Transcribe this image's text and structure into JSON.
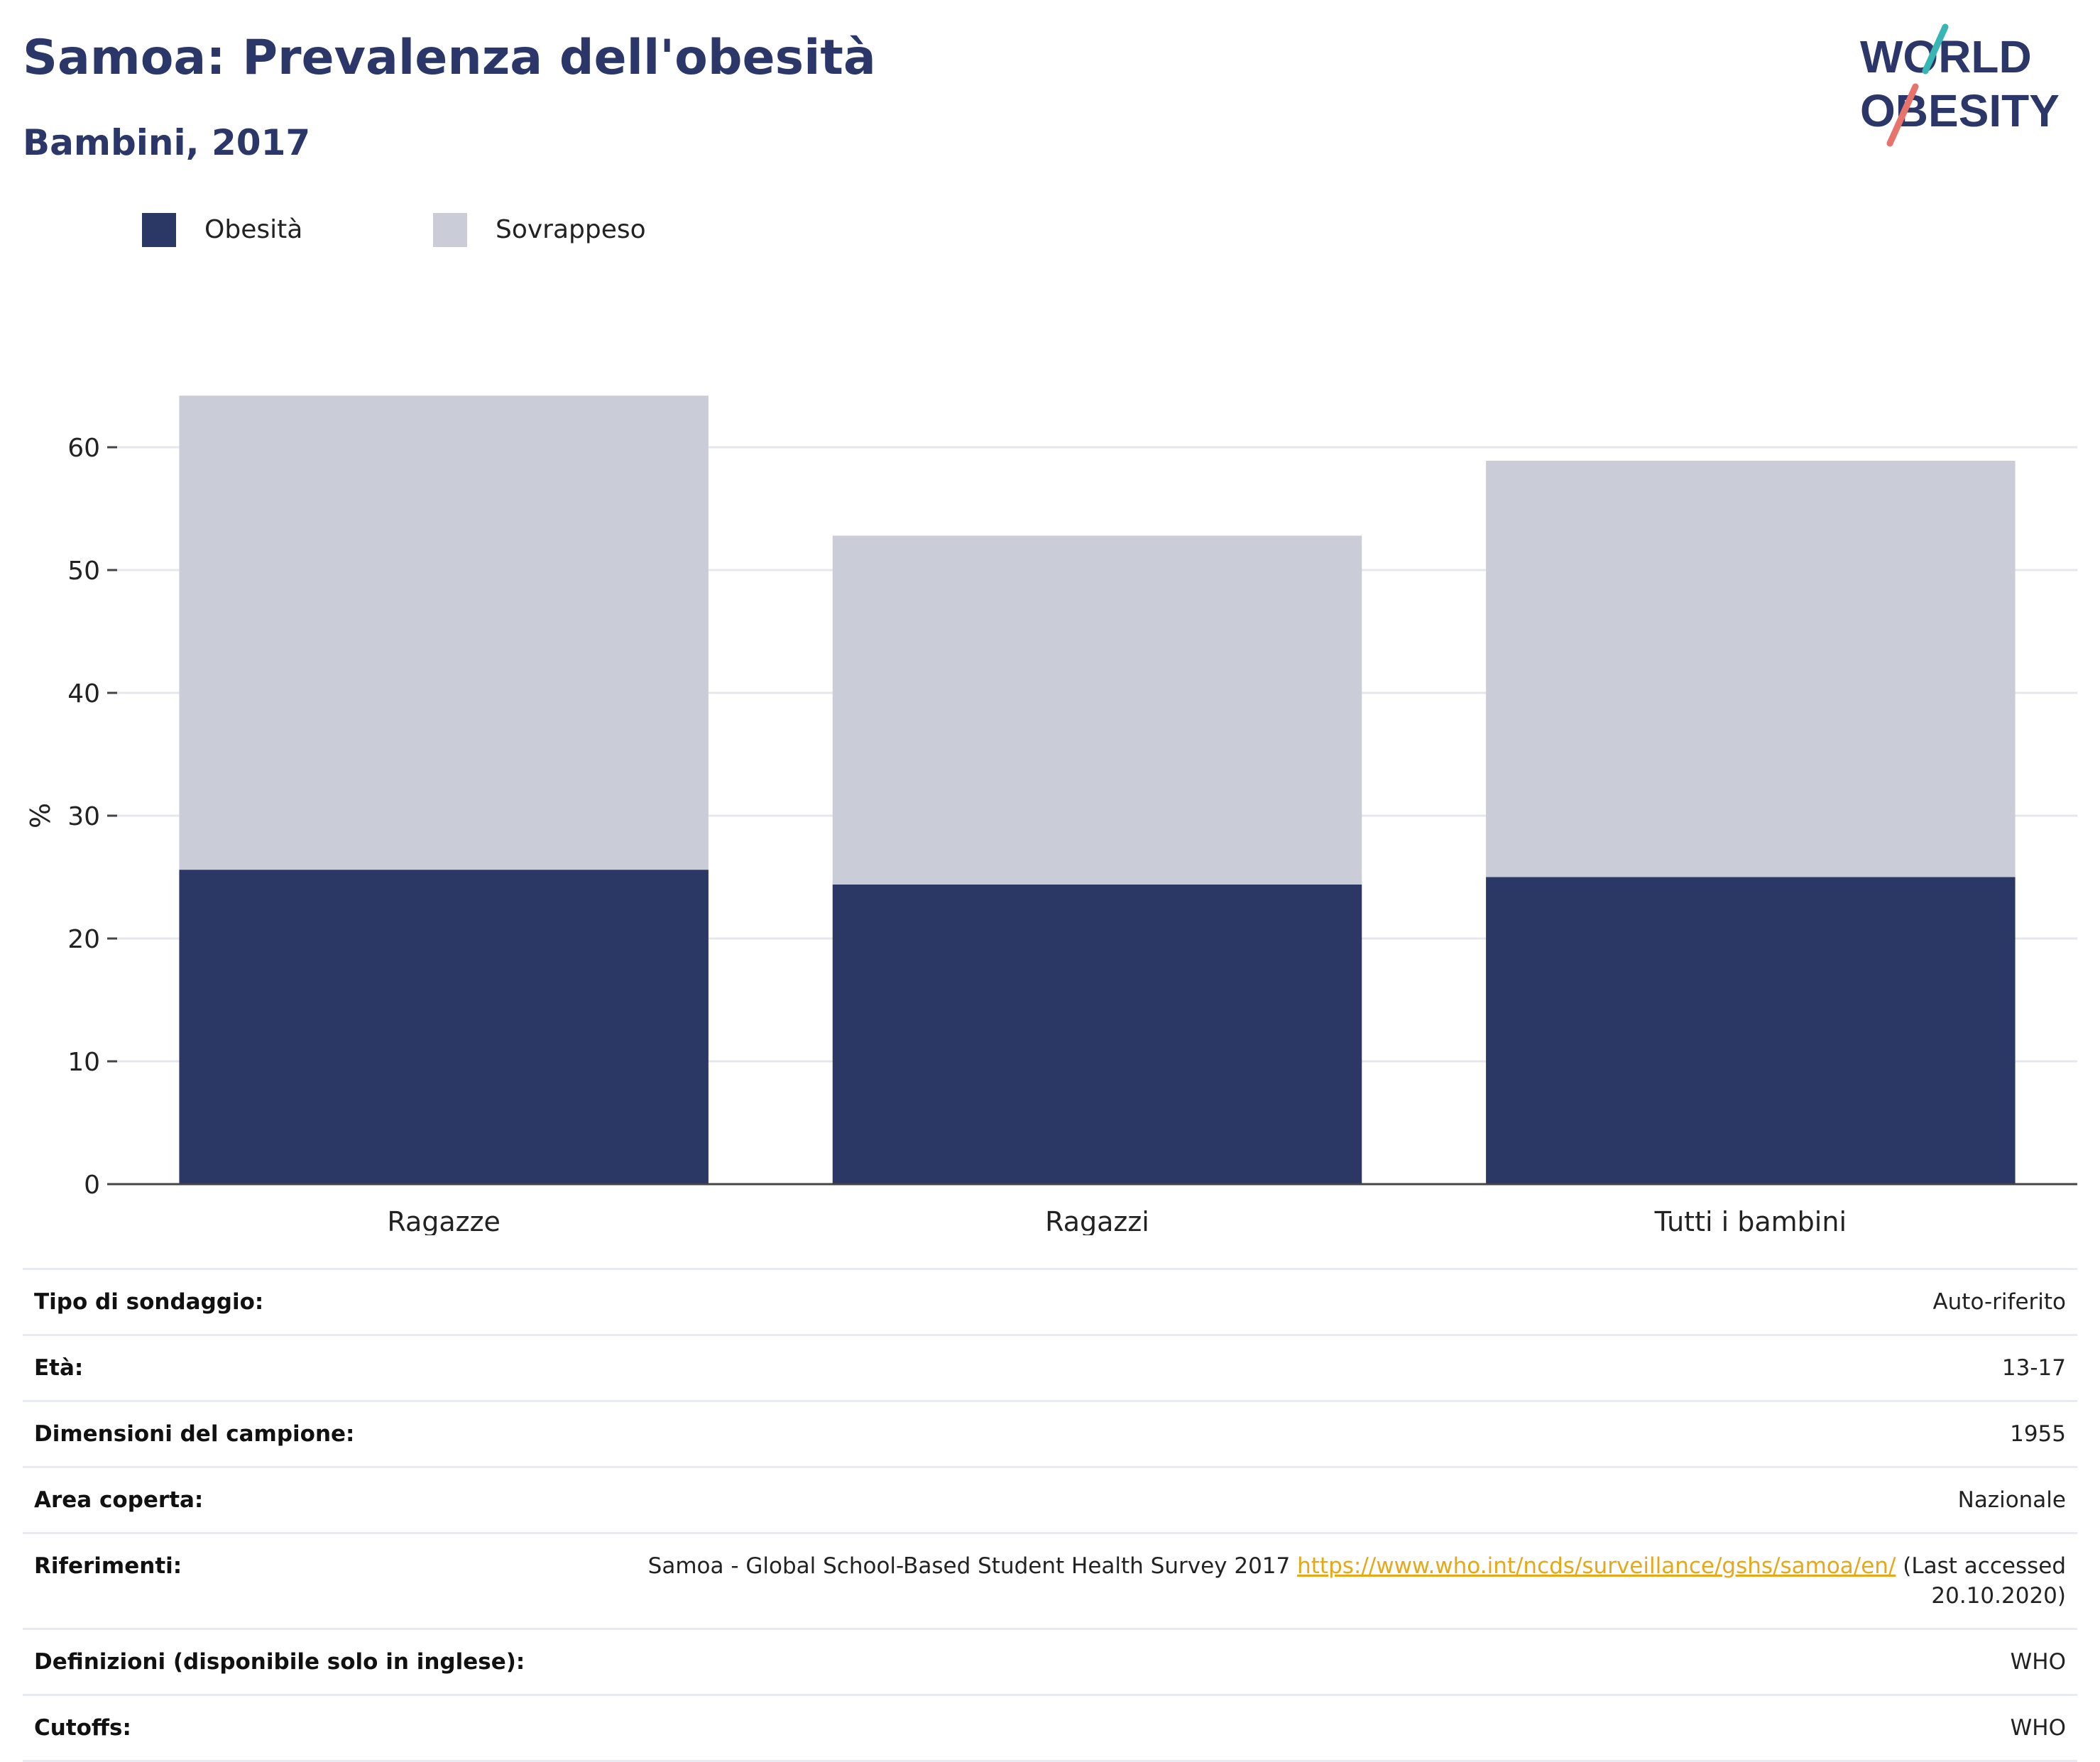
{
  "title": "Samoa: Prevalenza dell'obesità",
  "subtitle": "Bambini, 2017",
  "logo": {
    "line1": "WORLD",
    "line2": "OBESITY"
  },
  "legend": [
    {
      "label": "Obesità",
      "color": "#2b3764"
    },
    {
      "label": "Sovrappeso",
      "color": "#caccd8"
    }
  ],
  "chart_data": {
    "type": "bar",
    "stacked": true,
    "categories": [
      "Ragazze",
      "Ragazzi",
      "Tutti i bambini"
    ],
    "series": [
      {
        "name": "Obesità",
        "values": [
          25.6,
          24.4,
          25.0
        ],
        "color": "#2b3764"
      },
      {
        "name": "Sovrappeso",
        "values": [
          38.6,
          28.4,
          33.9
        ],
        "color": "#caccd8"
      }
    ],
    "ylabel": "%",
    "ylim": [
      0,
      70
    ],
    "yticks": [
      0,
      10,
      20,
      30,
      40,
      50,
      60
    ],
    "grid": true
  },
  "details": [
    {
      "key": "Tipo di sondaggio:",
      "value": "Auto-riferito"
    },
    {
      "key": "Età:",
      "value": "13-17"
    },
    {
      "key": "Dimensioni del campione:",
      "value": "1955"
    },
    {
      "key": "Area coperta:",
      "value": "Nazionale"
    },
    {
      "key": "Riferimenti:",
      "value": "Samoa - Global School-Based Student Health Survey 2017",
      "link": "https://www.who.int/ncds/surveillance/gshs/samoa/en/",
      "suffix": "(Last accessed 20.10.2020)"
    },
    {
      "key": "Definizioni (disponibile solo in inglese):",
      "value": "WHO"
    },
    {
      "key": "Cutoffs:",
      "value": "WHO"
    }
  ]
}
